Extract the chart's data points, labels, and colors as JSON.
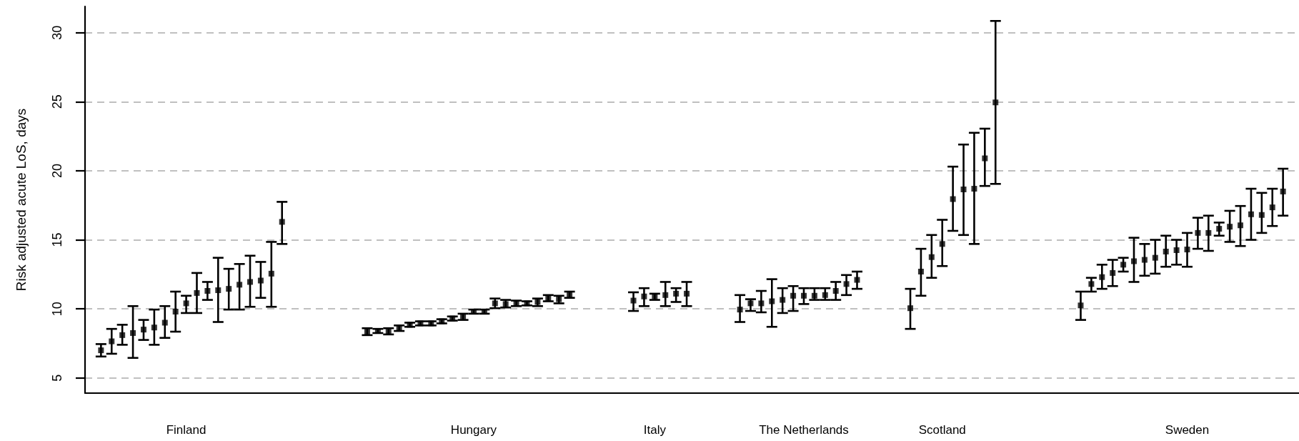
{
  "chart_data": {
    "type": "scatter",
    "ylabel": "Risk adjusted acute LoS, days",
    "categories": [
      null,
      null,
      null,
      null,
      null,
      null,
      null,
      null,
      null,
      "Finland",
      null,
      null,
      null,
      null,
      null,
      null,
      null,
      null,
      null,
      null,
      null,
      null,
      null,
      null,
      null,
      null,
      null,
      null,
      null,
      null,
      null,
      null,
      null,
      null,
      null,
      null,
      "Hungary",
      null,
      null,
      null,
      null,
      null,
      null,
      null,
      null,
      null,
      null,
      null,
      null,
      null,
      null,
      null,
      null,
      "Italy",
      null,
      null,
      null,
      null,
      null,
      null,
      null,
      null,
      null,
      null,
      null,
      null,
      null,
      "The Netherlands",
      null,
      null,
      null,
      null,
      null,
      null,
      null,
      null,
      null,
      null,
      null,
      null,
      "Scotland",
      null,
      null,
      null,
      null,
      null,
      null,
      null,
      null,
      null,
      null,
      null,
      null,
      null,
      null,
      null,
      null,
      null,
      null,
      null,
      null,
      null,
      null,
      "Sweden",
      null,
      null,
      null,
      null,
      null,
      null,
      null,
      null,
      null,
      null
    ],
    "ylim": [
      3.9,
      31.9
    ],
    "yticks": [
      5,
      10,
      15,
      20,
      25,
      30
    ],
    "grid": "y",
    "marker": "square",
    "series": [
      {
        "color": "#000000",
        "values": [
          null,
          7.0,
          7.65,
          8.1,
          8.25,
          8.5,
          8.65,
          9.0,
          9.8,
          10.4,
          11.15,
          11.3,
          11.35,
          11.45,
          11.75,
          11.95,
          12.05,
          12.55,
          16.3,
          null,
          null,
          null,
          null,
          null,
          null,
          null,
          8.35,
          8.4,
          8.4,
          8.6,
          8.85,
          8.95,
          8.95,
          9.1,
          9.3,
          9.45,
          9.8,
          9.8,
          10.4,
          10.35,
          10.4,
          10.4,
          10.5,
          10.75,
          10.7,
          11.0,
          null,
          null,
          null,
          null,
          null,
          10.6,
          10.9,
          10.9,
          11.0,
          11.1,
          11.1,
          null,
          null,
          null,
          null,
          9.95,
          10.4,
          10.4,
          10.55,
          10.65,
          10.95,
          10.95,
          10.95,
          11.0,
          11.3,
          11.8,
          12.1,
          null,
          null,
          null,
          null,
          10.05,
          12.7,
          13.75,
          14.7,
          17.95,
          18.65,
          18.7,
          20.9,
          24.95,
          null,
          null,
          null,
          null,
          null,
          null,
          null,
          10.25,
          11.8,
          12.3,
          12.6,
          13.2,
          13.45,
          13.55,
          13.7,
          14.15,
          14.25,
          14.3,
          15.5,
          15.5,
          15.8,
          15.95,
          16.05,
          16.85,
          16.8,
          17.35,
          18.5,
          null
        ],
        "errors": [
          null,
          [
            6.55,
            7.45
          ],
          [
            6.75,
            8.55
          ],
          [
            7.4,
            8.85
          ],
          [
            6.45,
            10.2
          ],
          [
            7.75,
            9.2
          ],
          [
            7.4,
            9.95
          ],
          [
            7.9,
            10.2
          ],
          [
            8.35,
            11.25
          ],
          [
            9.7,
            10.95
          ],
          [
            9.7,
            12.6
          ],
          [
            10.65,
            11.95
          ],
          [
            9.05,
            13.7
          ],
          [
            9.95,
            12.9
          ],
          [
            9.95,
            13.25
          ],
          [
            10.15,
            13.85
          ],
          [
            10.8,
            13.4
          ],
          [
            10.15,
            14.85
          ],
          [
            14.7,
            17.75
          ],
          null,
          null,
          null,
          null,
          null,
          null,
          null,
          [
            8.1,
            8.6
          ],
          [
            8.25,
            8.55
          ],
          [
            8.15,
            8.6
          ],
          [
            8.4,
            8.8
          ],
          [
            8.7,
            9.0
          ],
          [
            8.8,
            9.1
          ],
          [
            8.8,
            9.1
          ],
          [
            8.95,
            9.25
          ],
          [
            9.15,
            9.45
          ],
          [
            9.2,
            9.65
          ],
          [
            9.65,
            9.95
          ],
          [
            9.65,
            9.95
          ],
          [
            10.05,
            10.75
          ],
          [
            10.1,
            10.65
          ],
          [
            10.2,
            10.6
          ],
          [
            10.25,
            10.55
          ],
          [
            10.2,
            10.75
          ],
          [
            10.55,
            11.0
          ],
          [
            10.4,
            10.95
          ],
          [
            10.8,
            11.25
          ],
          null,
          null,
          null,
          null,
          null,
          [
            9.85,
            11.2
          ],
          [
            10.2,
            11.5
          ],
          [
            10.65,
            11.1
          ],
          [
            10.2,
            11.95
          ],
          [
            10.5,
            11.5
          ],
          [
            10.2,
            11.95
          ],
          null,
          null,
          null,
          null,
          [
            9.05,
            11.0
          ],
          [
            9.85,
            10.7
          ],
          [
            9.75,
            11.3
          ],
          [
            8.7,
            12.15
          ],
          [
            9.7,
            11.5
          ],
          [
            9.85,
            11.65
          ],
          [
            10.35,
            11.5
          ],
          [
            10.65,
            11.5
          ],
          [
            10.65,
            11.5
          ],
          [
            10.65,
            11.95
          ],
          [
            11.0,
            12.45
          ],
          [
            11.45,
            12.7
          ],
          null,
          null,
          null,
          null,
          [
            8.55,
            11.45
          ],
          [
            10.95,
            14.35
          ],
          [
            12.25,
            15.35
          ],
          [
            13.1,
            16.45
          ],
          [
            15.65,
            20.3
          ],
          [
            15.35,
            21.9
          ],
          [
            14.7,
            22.75
          ],
          [
            18.9,
            23.05
          ],
          [
            19.05,
            30.85
          ],
          null,
          null,
          null,
          null,
          null,
          null,
          null,
          [
            9.2,
            11.25
          ],
          [
            11.25,
            12.25
          ],
          [
            11.45,
            13.2
          ],
          [
            11.65,
            13.55
          ],
          [
            12.7,
            13.7
          ],
          [
            11.95,
            15.15
          ],
          [
            12.4,
            14.7
          ],
          [
            12.55,
            15.0
          ],
          [
            13.05,
            15.3
          ],
          [
            13.2,
            15.0
          ],
          [
            13.05,
            15.5
          ],
          [
            14.35,
            16.6
          ],
          [
            14.2,
            16.75
          ],
          [
            15.3,
            16.25
          ],
          [
            14.85,
            17.1
          ],
          [
            14.55,
            17.45
          ],
          [
            15.0,
            18.7
          ],
          [
            15.5,
            18.4
          ],
          [
            16.0,
            18.7
          ],
          [
            16.75,
            20.15
          ],
          null
        ]
      }
    ]
  }
}
